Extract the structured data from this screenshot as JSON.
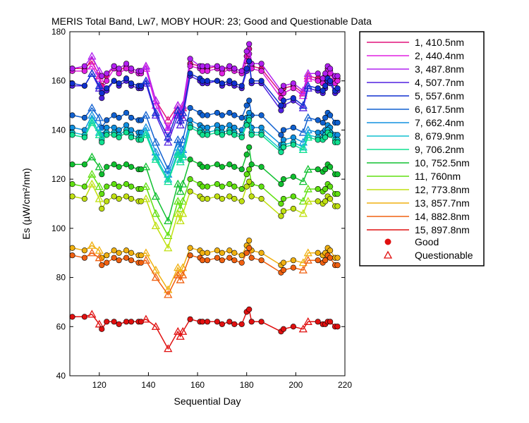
{
  "chart_data": {
    "type": "line",
    "title": "MERIS Total Band,  Lw7, MOBY HOUR: 23;  Good and Questionable Data",
    "xlabel": "Sequential Day",
    "ylabel": "Es (µW/cm²/nm)",
    "xlim": [
      108,
      220
    ],
    "ylim": [
      40,
      180
    ],
    "xticks": [
      120,
      140,
      160,
      180,
      200,
      220
    ],
    "yticks": [
      40,
      60,
      80,
      100,
      120,
      140,
      160,
      180
    ],
    "grid": false,
    "legend_position": "right",
    "x": [
      109,
      114,
      117,
      120,
      121,
      123,
      126,
      128,
      131,
      133,
      136,
      137,
      139,
      143,
      148,
      152,
      153,
      154,
      157,
      161,
      162,
      164,
      168,
      170,
      173,
      175,
      178,
      180,
      181,
      182,
      186,
      194,
      195,
      199,
      203,
      205,
      209,
      211,
      212,
      213,
      214,
      216,
      217
    ],
    "series": [
      {
        "name": "1, 410.5nm",
        "color": "#e0107a",
        "values": [
          165,
          165,
          168,
          162,
          158,
          162,
          166,
          164,
          166,
          165,
          164,
          164,
          166,
          152,
          144,
          150,
          146,
          149,
          167,
          166,
          165,
          165,
          166,
          164,
          166,
          165,
          164,
          170,
          173,
          166,
          165,
          155,
          157,
          158,
          155,
          162,
          161,
          160,
          162,
          165,
          164,
          160,
          161
        ]
      },
      {
        "name": "2, 440.4nm",
        "color": "#e020e0",
        "values": [
          164,
          164,
          166,
          161,
          156,
          160,
          165,
          163,
          165,
          164,
          163,
          163,
          165,
          150,
          141,
          148,
          144,
          147,
          166,
          165,
          164,
          164,
          165,
          163,
          165,
          164,
          163,
          168,
          171,
          165,
          164,
          153,
          155,
          157,
          154,
          161,
          160,
          159,
          161,
          164,
          163,
          159,
          160
        ]
      },
      {
        "name": "3, 487.8nm",
        "color": "#b020f0",
        "values": [
          165,
          166,
          170,
          164,
          162,
          163,
          166,
          165,
          167,
          165,
          164,
          164,
          166,
          152,
          140,
          150,
          147,
          150,
          169,
          166,
          166,
          166,
          166,
          165,
          166,
          165,
          164,
          172,
          175,
          167,
          167,
          156,
          158,
          159,
          156,
          163,
          163,
          161,
          163,
          166,
          165,
          162,
          162
        ]
      },
      {
        "name": "4, 507.7nm",
        "color": "#5020e0",
        "values": [
          158,
          158,
          163,
          157,
          153,
          156,
          160,
          158,
          160,
          158,
          157,
          157,
          159,
          146,
          135,
          146,
          142,
          145,
          162,
          160,
          159,
          159,
          160,
          158,
          159,
          158,
          157,
          164,
          168,
          159,
          159,
          148,
          150,
          152,
          149,
          157,
          156,
          155,
          157,
          160,
          159,
          155,
          156
        ]
      },
      {
        "name": "5, 557.6nm",
        "color": "#1030d0",
        "values": [
          159,
          158,
          163,
          158,
          155,
          157,
          160,
          159,
          161,
          159,
          158,
          158,
          160,
          147,
          137,
          148,
          144,
          147,
          163,
          161,
          160,
          160,
          160,
          159,
          160,
          159,
          158,
          165,
          168,
          160,
          160,
          150,
          152,
          153,
          150,
          158,
          157,
          156,
          158,
          161,
          160,
          156,
          157
        ]
      },
      {
        "name": "6, 617.5nm",
        "color": "#1060d0",
        "values": [
          146,
          145,
          149,
          145,
          141,
          144,
          146,
          145,
          147,
          145,
          144,
          144,
          146,
          135,
          124,
          136,
          133,
          136,
          149,
          147,
          146,
          146,
          147,
          146,
          147,
          146,
          145,
          150,
          152,
          146,
          146,
          138,
          140,
          141,
          139,
          145,
          144,
          143,
          145,
          147,
          146,
          143,
          143
        ]
      },
      {
        "name": "7, 662.4nm",
        "color": "#1090e0",
        "values": [
          141,
          140,
          146,
          141,
          138,
          141,
          141,
          140,
          142,
          140,
          139,
          139,
          141,
          131,
          122,
          133,
          130,
          132,
          144,
          142,
          141,
          141,
          142,
          141,
          142,
          141,
          140,
          145,
          147,
          141,
          141,
          134,
          136,
          137,
          135,
          140,
          139,
          139,
          140,
          142,
          141,
          138,
          138
        ]
      },
      {
        "name": "8, 679.9nm",
        "color": "#10c0d0",
        "values": [
          139,
          138,
          144,
          139,
          136,
          139,
          139,
          138,
          140,
          138,
          137,
          137,
          139,
          129,
          120,
          131,
          128,
          130,
          142,
          140,
          139,
          139,
          140,
          139,
          140,
          139,
          138,
          143,
          145,
          139,
          139,
          132,
          134,
          135,
          133,
          138,
          137,
          137,
          138,
          140,
          139,
          136,
          136
        ]
      },
      {
        "name": "9, 706.2nm",
        "color": "#10e090",
        "values": [
          138,
          137,
          143,
          138,
          135,
          138,
          138,
          137,
          139,
          137,
          136,
          136,
          138,
          128,
          119,
          130,
          127,
          129,
          141,
          139,
          138,
          138,
          139,
          138,
          139,
          138,
          137,
          142,
          144,
          138,
          138,
          131,
          133,
          134,
          132,
          137,
          136,
          136,
          137,
          139,
          138,
          135,
          135
        ]
      },
      {
        "name": "10, 752.5nm",
        "color": "#10c030",
        "values": [
          126,
          126,
          129,
          125,
          122,
          125,
          126,
          125,
          126,
          125,
          124,
          124,
          125,
          113,
          103,
          118,
          115,
          118,
          128,
          126,
          125,
          125,
          126,
          125,
          126,
          125,
          124,
          130,
          133,
          126,
          125,
          118,
          120,
          121,
          119,
          124,
          124,
          123,
          124,
          126,
          125,
          122,
          122
        ]
      },
      {
        "name": "11,   760nm",
        "color": "#60e010",
        "values": [
          118,
          117,
          122,
          117,
          114,
          117,
          118,
          117,
          118,
          117,
          116,
          116,
          117,
          106,
          97,
          111,
          108,
          111,
          120,
          118,
          117,
          117,
          118,
          117,
          118,
          117,
          116,
          122,
          124,
          118,
          117,
          110,
          112,
          113,
          111,
          116,
          116,
          115,
          116,
          118,
          117,
          114,
          114
        ]
      },
      {
        "name": "12, 773.8nm",
        "color": "#c0e010",
        "values": [
          113,
          112,
          118,
          112,
          108,
          111,
          113,
          112,
          113,
          112,
          111,
          111,
          112,
          101,
          92,
          106,
          103,
          106,
          115,
          113,
          112,
          112,
          113,
          112,
          113,
          112,
          111,
          117,
          119,
          113,
          112,
          105,
          107,
          108,
          106,
          111,
          111,
          110,
          111,
          113,
          112,
          109,
          109
        ]
      },
      {
        "name": "13, 857.7nm",
        "color": "#f0b010",
        "values": [
          92,
          91,
          93,
          91,
          88,
          89,
          91,
          90,
          91,
          90,
          89,
          89,
          90,
          83,
          75,
          84,
          82,
          84,
          92,
          91,
          90,
          90,
          91,
          90,
          91,
          90,
          89,
          93,
          95,
          91,
          90,
          85,
          86,
          87,
          86,
          90,
          90,
          89,
          90,
          92,
          91,
          88,
          88
        ]
      },
      {
        "name": "14, 882.8nm",
        "color": "#f06010",
        "values": [
          89,
          88,
          90,
          88,
          85,
          86,
          88,
          87,
          88,
          87,
          86,
          86,
          87,
          80,
          73,
          81,
          79,
          81,
          89,
          88,
          87,
          87,
          88,
          87,
          88,
          87,
          86,
          90,
          92,
          88,
          87,
          82,
          83,
          84,
          83,
          87,
          87,
          86,
          87,
          89,
          88,
          85,
          85
        ]
      },
      {
        "name": "15, 897.8nm",
        "color": "#e01010",
        "values": [
          64,
          64,
          65,
          61,
          59,
          62,
          62,
          61,
          62,
          62,
          62,
          62,
          63,
          60,
          51,
          58,
          56,
          58,
          63,
          62,
          62,
          62,
          62,
          61,
          62,
          61,
          61,
          66,
          67,
          62,
          62,
          58,
          59,
          60,
          59,
          62,
          62,
          61,
          61,
          62,
          62,
          60,
          60
        ]
      }
    ],
    "markers": {
      "good_label": "Good",
      "questionable_label": "Questionable",
      "questionable_x": [
        117,
        120,
        139,
        143,
        148,
        152,
        153,
        154,
        203,
        205
      ]
    }
  }
}
